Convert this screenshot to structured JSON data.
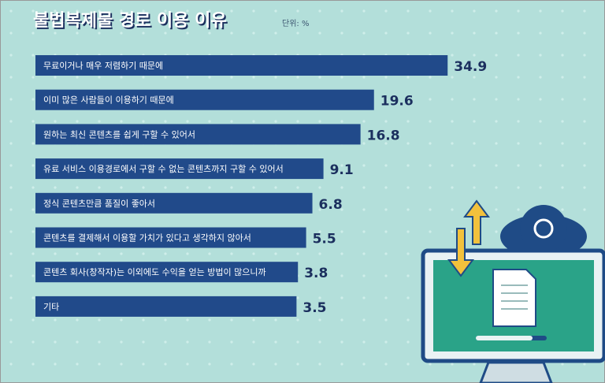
{
  "chart_data": {
    "type": "bar",
    "orientation": "horizontal",
    "title": "불법복제물 경로 이용 이유",
    "unit": "단위: %",
    "categories": [
      "무료이거나 매우 저렴하기 때문에",
      "이미 많은 사람들이 이용하기 때문에",
      "원하는 최신 콘텐츠를 쉽게 구할 수 있어서",
      "유료 서비스 이용경로에서 구할 수 없는 콘텐츠까지 구할 수 있어서",
      "정식 콘텐츠만큼 품질이 좋아서",
      "콘텐츠를 결제해서 이용할 가치가 있다고 생각하지 않아서",
      "콘텐츠 회사(창작자)는 이외에도 수익을 얻는 방법이 많으니까",
      "기타"
    ],
    "values": [
      34.9,
      19.6,
      16.8,
      9.1,
      6.8,
      5.5,
      3.8,
      3.5
    ],
    "color": "#214a8a"
  }
}
